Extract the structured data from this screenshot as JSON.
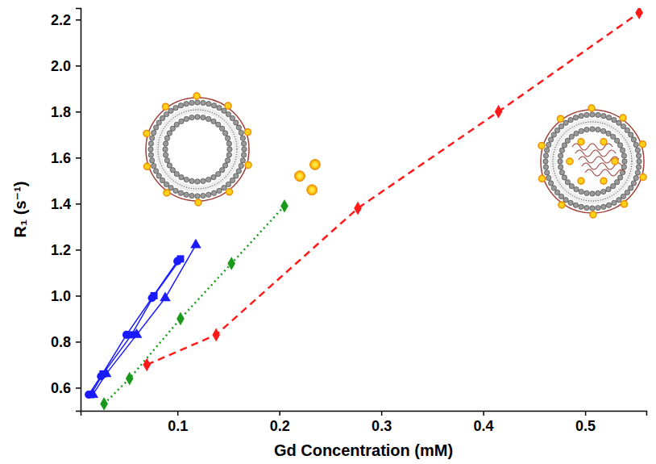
{
  "chart_data": {
    "type": "scatter",
    "x_label": "Gd Concentration (mM)",
    "y_label": "R₁ (s⁻¹)",
    "xlim": [
      0.005,
      0.56
    ],
    "xticks": [
      0.1,
      0.2,
      0.3,
      0.4,
      0.5
    ],
    "ylim": [
      0.5,
      2.25
    ],
    "yticks": [
      0.6,
      0.8,
      {
        "value": 1,
        "label": "1.0"
      },
      1.2,
      1.4,
      1.6,
      1.8,
      {
        "value": 2,
        "label": "2.0"
      },
      2.2
    ],
    "grid": false,
    "series": [
      {
        "color": "#1a1aff",
        "marker": "circle",
        "line_style": "solid",
        "x": [
          0.013,
          0.025,
          0.05,
          0.075,
          0.1
        ],
        "values": [
          0.57,
          0.65,
          0.83,
          0.99,
          1.15
        ]
      },
      {
        "color": "#1a1aff",
        "marker": "square",
        "line_style": "solid",
        "x": [
          0.015,
          0.027,
          0.055,
          0.077,
          0.103
        ],
        "values": [
          0.57,
          0.66,
          0.83,
          1.0,
          1.16
        ]
      },
      {
        "color": "#1a1aff",
        "marker": "triangle",
        "line_style": "solid",
        "x": [
          0.017,
          0.03,
          0.06,
          0.088,
          0.118
        ],
        "values": [
          0.57,
          0.66,
          0.83,
          0.99,
          1.22
        ]
      },
      {
        "color": "#1a9a1a",
        "marker": "diamond",
        "line_style": "dotted",
        "x": [
          0.028,
          0.053,
          0.103,
          0.153,
          0.205
        ],
        "values": [
          0.53,
          0.64,
          0.9,
          1.14,
          1.39
        ]
      },
      {
        "color": "#ff1a1a",
        "marker": "diamond",
        "line_style": "dashed",
        "x": [
          0.07,
          0.138,
          0.277,
          0.415,
          0.553
        ],
        "values": [
          0.7,
          0.83,
          1.38,
          1.8,
          2.23
        ]
      },
      {
        "color": "#f08c00",
        "marker": "circle",
        "line_style": "none",
        "x": [
          0.22,
          0.232,
          0.235
        ],
        "values": [
          1.52,
          1.46,
          1.57
        ]
      }
    ]
  }
}
